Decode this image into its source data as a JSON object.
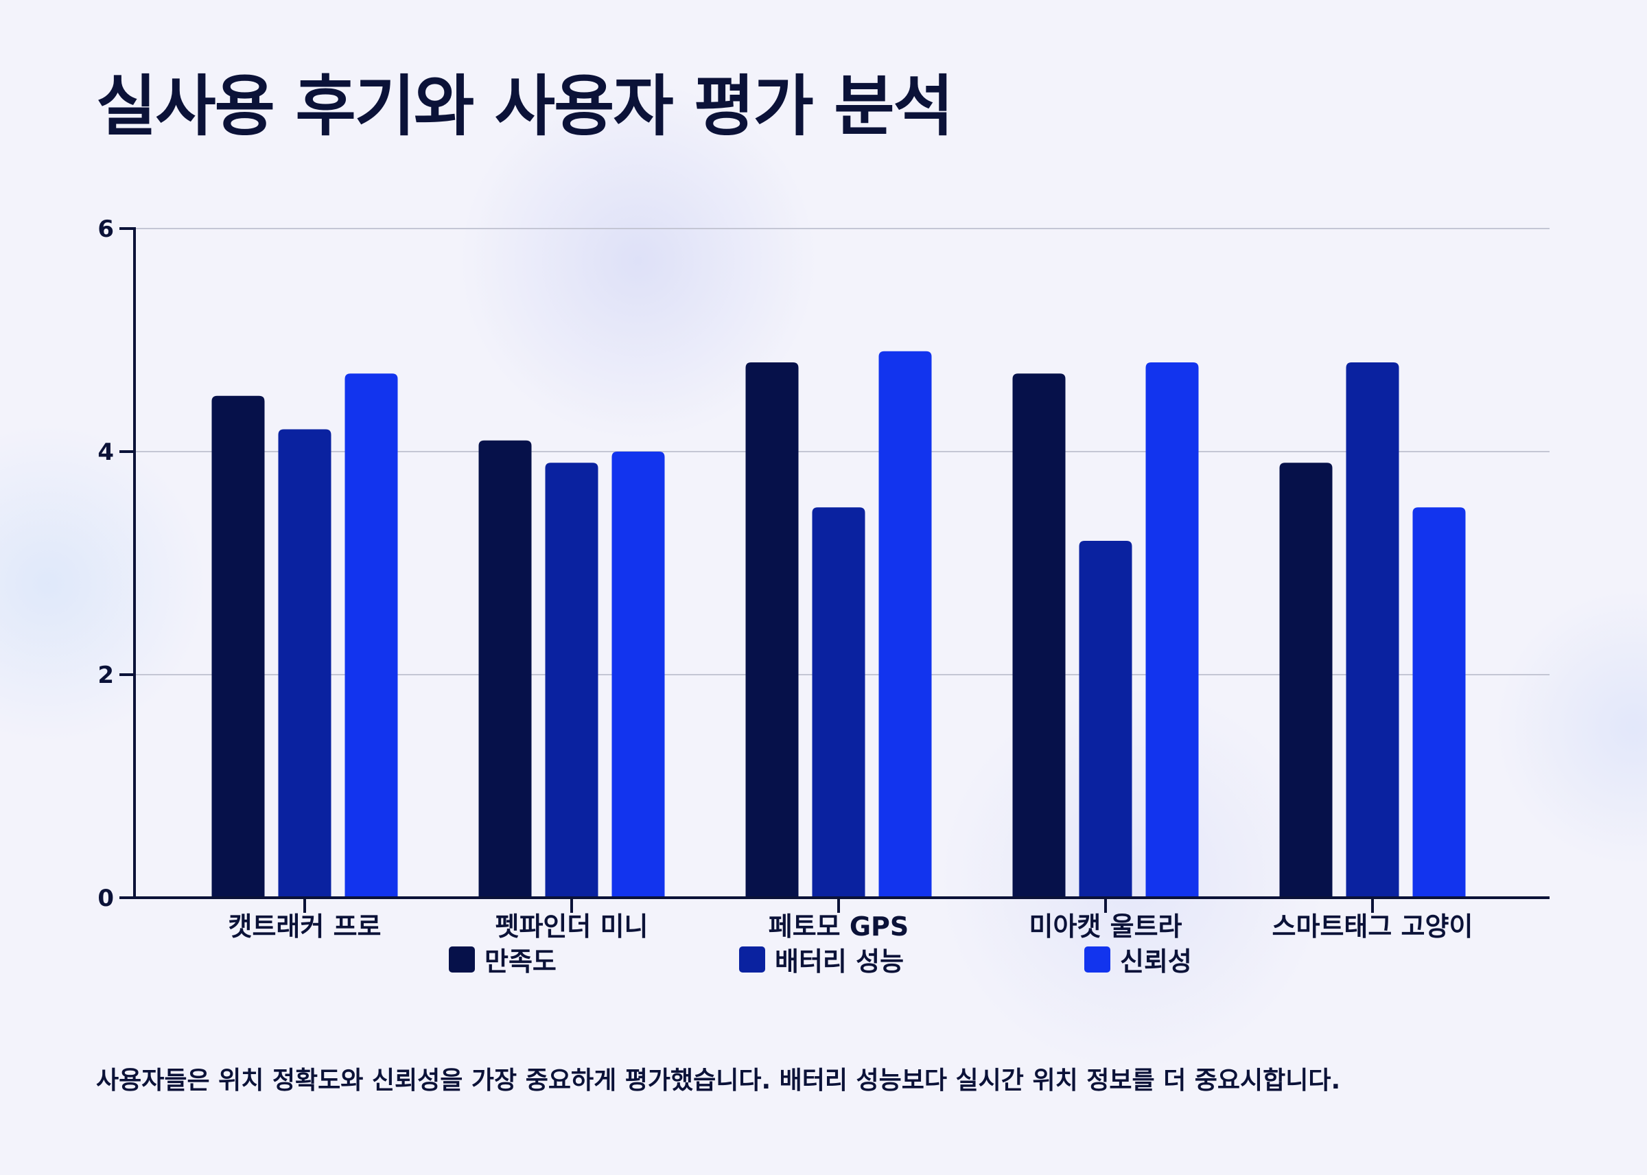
{
  "title": "실사용 후기와 사용자 평가 분석",
  "caption": "사용자들은 위치 정확도와 신뢰성을 가장 중요하게 평가했습니다. 배터리 성능보다 실시간 위치 정보를 더 중요시합니다.",
  "chart_data": {
    "type": "bar",
    "title": "",
    "xlabel": "",
    "ylabel": "",
    "ylim": [
      0,
      6
    ],
    "yticks": [
      0,
      2,
      4,
      6
    ],
    "grid": true,
    "legend_position": "bottom",
    "categories": [
      "캣트래커 프로",
      "펫파인더 미니",
      "페토모 GPS",
      "미아캣 울트라",
      "스마트태그 고양이"
    ],
    "series": [
      {
        "name": "만족도",
        "color": "#06114a",
        "values": [
          4.5,
          4.1,
          4.8,
          4.7,
          3.9
        ]
      },
      {
        "name": "배터리 성능",
        "color": "#0a22a0",
        "values": [
          4.2,
          3.9,
          3.5,
          3.2,
          4.8
        ]
      },
      {
        "name": "신뢰성",
        "color": "#1234ee",
        "values": [
          4.7,
          4.0,
          4.9,
          4.8,
          3.5
        ]
      }
    ]
  }
}
